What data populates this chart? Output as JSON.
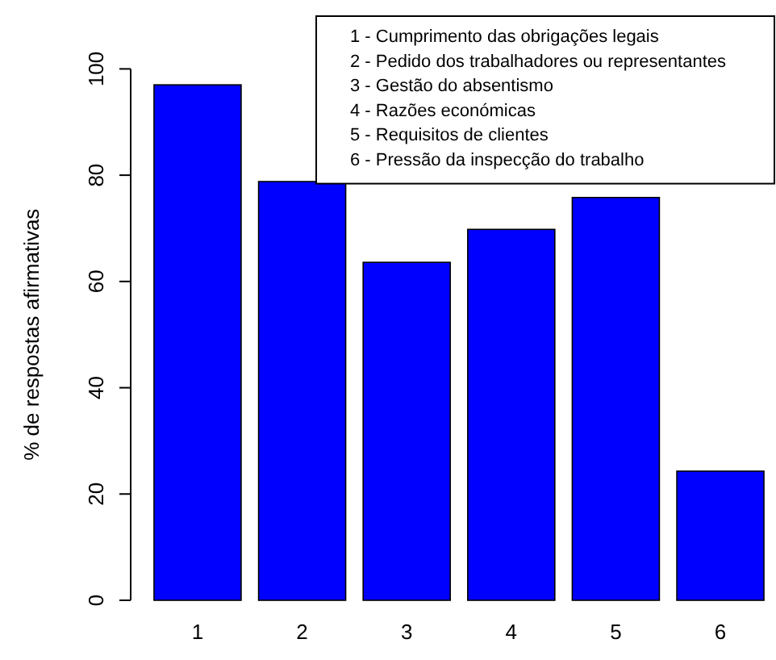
{
  "chart_data": {
    "type": "bar",
    "ylabel": "% de respostas afirmativas",
    "categories": [
      "1",
      "2",
      "3",
      "4",
      "5",
      "6"
    ],
    "values": [
      97,
      78.8,
      63.6,
      69.8,
      75.8,
      24.3
    ],
    "color": "#0000ff",
    "ylim": [
      0,
      100
    ],
    "yticks": [
      0,
      20,
      40,
      60,
      80,
      100
    ],
    "grid": false,
    "annotations": [
      "1 - Cumprimento das obrigações legais",
      "2 - Pedido dos trabalhadores ou representantes",
      "3 - Gestão do absentismo",
      "4 - Razões económicas",
      "5 - Requisitos de clientes",
      "6 - Pressão da inspecção do trabalho"
    ]
  }
}
